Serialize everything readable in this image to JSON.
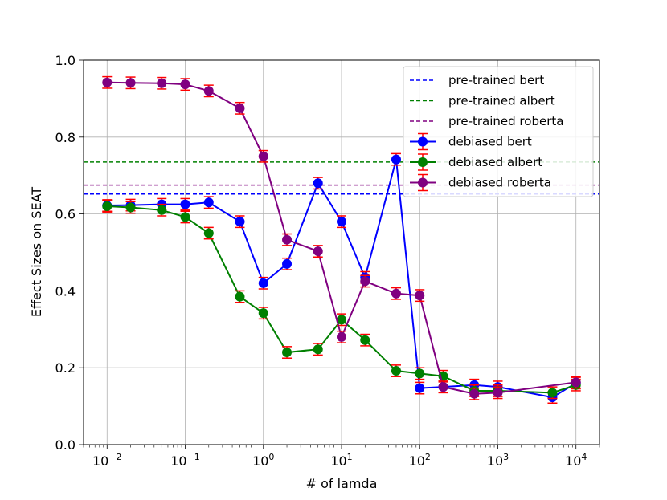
{
  "chart_data": {
    "type": "line",
    "xscale": "log",
    "xlabel": "# of lamda",
    "ylabel": "Effect Sizes on SEAT",
    "xlim": [
      0.005,
      20000
    ],
    "ylim": [
      0.0,
      1.0
    ],
    "x_ticks": [
      {
        "value": 0.01,
        "base": "10",
        "exp": "−2"
      },
      {
        "value": 0.1,
        "base": "10",
        "exp": "−1"
      },
      {
        "value": 1,
        "base": "10",
        "exp": "0"
      },
      {
        "value": 10,
        "base": "10",
        "exp": "1"
      },
      {
        "value": 100,
        "base": "10",
        "exp": "2"
      },
      {
        "value": 1000,
        "base": "10",
        "exp": "3"
      },
      {
        "value": 10000,
        "base": "10",
        "exp": "4"
      }
    ],
    "y_ticks": [
      {
        "value": 0.0,
        "label": "0.0"
      },
      {
        "value": 0.2,
        "label": "0.2"
      },
      {
        "value": 0.4,
        "label": "0.4"
      },
      {
        "value": 0.6,
        "label": "0.6"
      },
      {
        "value": 0.8,
        "label": "0.8"
      },
      {
        "value": 1.0,
        "label": "1.0"
      }
    ],
    "grid": true,
    "legend_position": "top-right",
    "error_bar_color": "#ff0000",
    "reference_lines": [
      {
        "name": "pre-trained bert",
        "value": 0.652,
        "color": "#0000ff"
      },
      {
        "name": "pre-trained albert",
        "value": 0.735,
        "color": "#008000"
      },
      {
        "name": "pre-trained roberta",
        "value": 0.675,
        "color": "#800080"
      }
    ],
    "x": [
      0.01,
      0.02,
      0.05,
      0.1,
      0.2,
      0.5,
      1,
      2,
      5,
      10,
      20,
      50,
      100,
      200,
      500,
      1000,
      5000,
      10000
    ],
    "series": [
      {
        "name": "debiased bert",
        "color": "#0000ff",
        "values": [
          0.622,
          0.623,
          0.625,
          0.625,
          0.63,
          0.58,
          0.42,
          0.47,
          0.68,
          0.58,
          0.435,
          0.742,
          0.147,
          0.15,
          0.155,
          0.15,
          0.123,
          0.16
        ],
        "errors": [
          0.015,
          0.015,
          0.015,
          0.015,
          0.015,
          0.015,
          0.015,
          0.015,
          0.015,
          0.015,
          0.015,
          0.015,
          0.015,
          0.015,
          0.015,
          0.015,
          0.015,
          0.015
        ]
      },
      {
        "name": "debiased albert",
        "color": "#008000",
        "values": [
          0.62,
          0.617,
          0.61,
          0.592,
          0.55,
          0.385,
          0.342,
          0.24,
          0.248,
          0.325,
          0.272,
          0.192,
          0.185,
          0.178,
          0.14,
          0.14,
          0.135,
          0.155
        ],
        "errors": [
          0.015,
          0.015,
          0.015,
          0.015,
          0.015,
          0.015,
          0.015,
          0.015,
          0.015,
          0.015,
          0.015,
          0.015,
          0.015,
          0.015,
          0.015,
          0.015,
          0.015,
          0.015
        ]
      },
      {
        "name": "debiased roberta",
        "color": "#800080",
        "values": [
          0.942,
          0.941,
          0.94,
          0.937,
          0.92,
          0.875,
          0.75,
          0.533,
          0.503,
          0.28,
          0.425,
          0.393,
          0.388,
          0.15,
          0.132,
          0.135,
          null,
          0.162
        ],
        "errors": [
          0.015,
          0.015,
          0.015,
          0.015,
          0.015,
          0.015,
          0.015,
          0.015,
          0.015,
          0.015,
          0.015,
          0.015,
          0.015,
          0.015,
          0.015,
          0.015,
          0.015,
          0.015
        ]
      }
    ]
  }
}
